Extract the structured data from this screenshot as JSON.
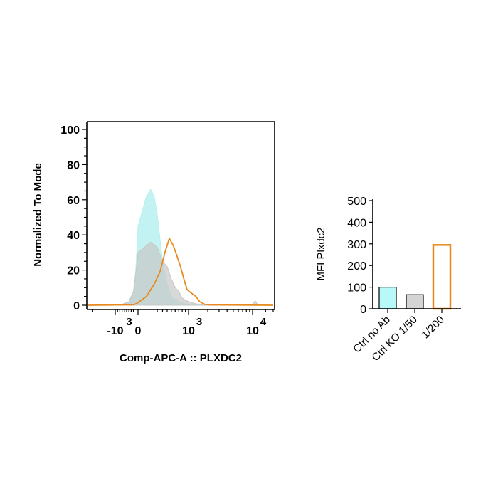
{
  "chart_data": [
    {
      "type": "area",
      "xlabel": "Comp-APC-A :: PLXDC2",
      "ylabel": "Normalized To Mode",
      "ylim": [
        0,
        100
      ],
      "y_ticks": [
        "0",
        "20",
        "40",
        "60",
        "80",
        "100"
      ],
      "y_tick_values": [
        0,
        20,
        40,
        60,
        80,
        100
      ],
      "x_ticks": [
        {
          "base": "-10",
          "exp": "3",
          "value": -1000
        },
        {
          "base": "0",
          "exp": "",
          "value": 0
        },
        {
          "base": "10",
          "exp": "3",
          "value": 1000
        },
        {
          "base": "10",
          "exp": "4",
          "value": 10000
        }
      ],
      "xscale": "biexponential",
      "series": [
        {
          "name": "Ctrl no Ab",
          "color": "#b8f0f0",
          "style": "filled",
          "x": [
            -1600,
            -700,
            -400,
            -200,
            -100,
            0,
            50,
            100,
            150,
            200,
            300,
            400,
            500,
            700,
            900,
            1200,
            2000,
            30000
          ],
          "y": [
            0,
            0.5,
            2,
            8,
            20,
            45,
            62,
            66,
            62,
            52,
            25,
            12,
            5,
            2,
            0.8,
            0.3,
            0,
            0
          ]
        },
        {
          "name": "Ctrl KO 1/50",
          "color": "#c8c8c8",
          "style": "filled",
          "x": [
            -1600,
            -700,
            -400,
            -200,
            -100,
            0,
            100,
            200,
            300,
            400,
            500,
            600,
            700,
            800,
            1000,
            1300,
            2000,
            5000,
            10000,
            11500,
            13000,
            30000
          ],
          "y": [
            0,
            0.5,
            2,
            8,
            18,
            30,
            36,
            33,
            25,
            22,
            15,
            10,
            8,
            4,
            2,
            0.8,
            0.3,
            0.2,
            0.5,
            2.5,
            0.5,
            0
          ]
        },
        {
          "name": "1/200",
          "color": "#e8891e",
          "style": "line",
          "x": [
            -1600,
            -200,
            -50,
            50,
            150,
            250,
            350,
            450,
            550,
            650,
            750,
            850,
            950,
            1100,
            1300,
            1500,
            1800,
            2200,
            30000
          ],
          "y": [
            0,
            0.3,
            1,
            5,
            12,
            19,
            30,
            38,
            34,
            28,
            22,
            15,
            9,
            7,
            5,
            2,
            0.5,
            0.2,
            0
          ]
        }
      ]
    },
    {
      "type": "bar",
      "ylabel": "MFI Plxdc2",
      "ylim": [
        0,
        500
      ],
      "y_ticks": [
        "0",
        "100",
        "200",
        "300",
        "400",
        "500"
      ],
      "y_tick_values": [
        0,
        100,
        200,
        300,
        400,
        500
      ],
      "categories": [
        "Ctrl no Ab",
        "Ctrl KO 1/50",
        "1/200"
      ],
      "values": [
        100,
        65,
        295
      ],
      "colors": [
        "#b8f8f8",
        "#d4d4d4",
        "#ffffff"
      ],
      "edge_colors": [
        "#000000",
        "#000000",
        "#e8891e"
      ]
    }
  ]
}
